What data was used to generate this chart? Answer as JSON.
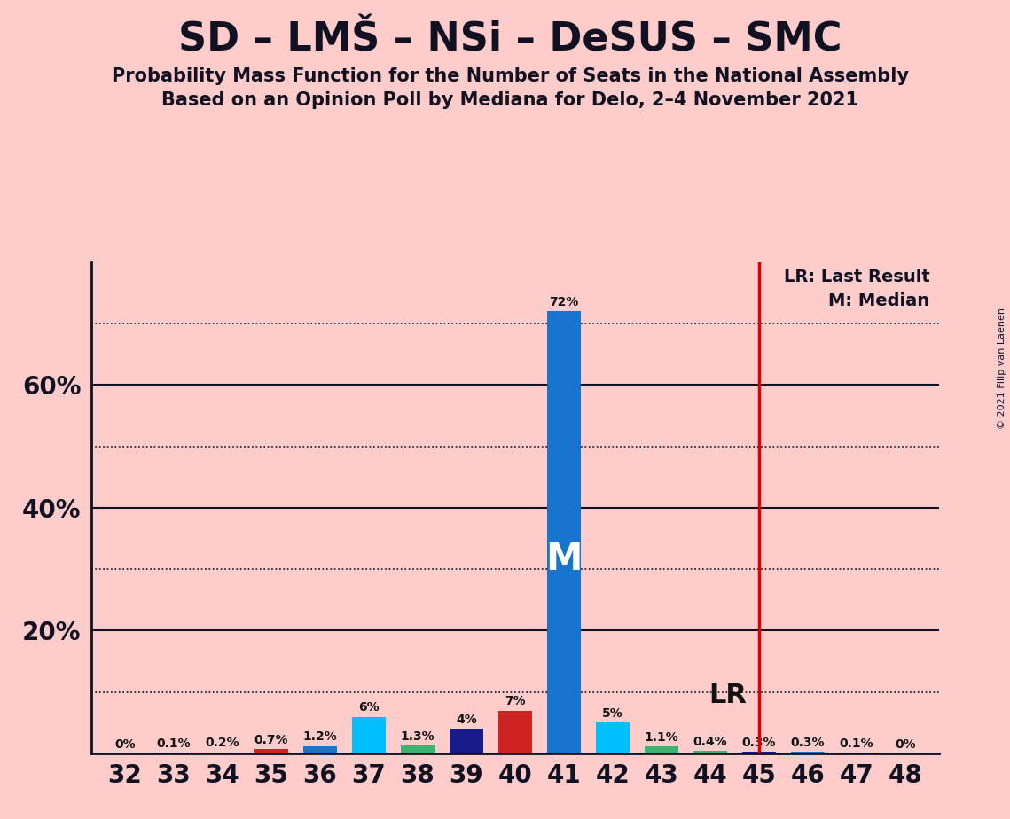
{
  "title": "SD – LMŠ – NSi – DeSUS – SMC",
  "subtitle1": "Probability Mass Function for the Number of Seats in the National Assembly",
  "subtitle2": "Based on an Opinion Poll by Mediana for Delo, 2–4 November 2021",
  "copyright": "© 2021 Filip van Laenen",
  "seats": [
    32,
    33,
    34,
    35,
    36,
    37,
    38,
    39,
    40,
    41,
    42,
    43,
    44,
    45,
    46,
    47,
    48
  ],
  "values": [
    0.0,
    0.1,
    0.2,
    0.7,
    1.2,
    6.0,
    1.3,
    4.0,
    7.0,
    72.0,
    5.0,
    1.1,
    0.4,
    0.3,
    0.3,
    0.1,
    0.0
  ],
  "labels": [
    "0%",
    "0.1%",
    "0.2%",
    "0.7%",
    "1.2%",
    "6%",
    "1.3%",
    "4%",
    "7%",
    "72%",
    "5%",
    "1.1%",
    "0.4%",
    "0.3%",
    "0.3%",
    "0.1%",
    "0%"
  ],
  "bar_colors": [
    "#1874CD",
    "#1874CD",
    "#CC2222",
    "#CC2222",
    "#1874CD",
    "#00BFFF",
    "#3CB371",
    "#1A1A8C",
    "#CC2222",
    "#1874CD",
    "#00BFFF",
    "#3CB371",
    "#3CB371",
    "#1A1A8C",
    "#1874CD",
    "#1874CD",
    "#1874CD"
  ],
  "lr_seat": 45,
  "median_seat": 41,
  "background_color": "#FFCCCC",
  "plot_bg_color": "#FFCCCC",
  "lr_line_color": "#DD0000",
  "median_label_color": "#FFFFFF",
  "solid_gridlines": [
    20,
    40,
    60
  ],
  "dotted_gridlines": [
    10,
    30,
    50,
    70
  ],
  "ytick_labels": [
    "20%",
    "40%",
    "60%"
  ],
  "ytick_values": [
    20,
    40,
    60
  ],
  "ylim": [
    0,
    80
  ],
  "xlim": [
    31.3,
    48.7
  ],
  "legend_lr": "LR: Last Result",
  "legend_m": "M: Median"
}
